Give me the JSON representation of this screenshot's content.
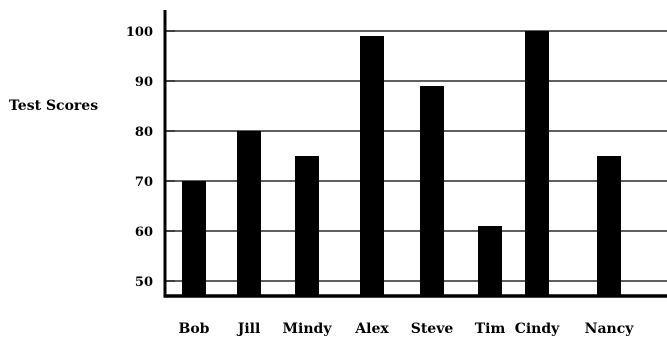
{
  "chart_data": {
    "type": "bar",
    "title": "",
    "xlabel": "",
    "ylabel": "Test Scores",
    "categories": [
      "Bob",
      "Jill",
      "Mindy",
      "Alex",
      "Steve",
      "Tim",
      "Cindy",
      "Nancy"
    ],
    "values": [
      70,
      80,
      75,
      99,
      89,
      61,
      100,
      75
    ],
    "ylim": [
      45,
      100
    ],
    "yticks": [
      50,
      60,
      70,
      80,
      90,
      100
    ],
    "grid": true,
    "colors": {
      "bar": "#000000",
      "grid": "#000000",
      "axis": "#000000"
    }
  }
}
